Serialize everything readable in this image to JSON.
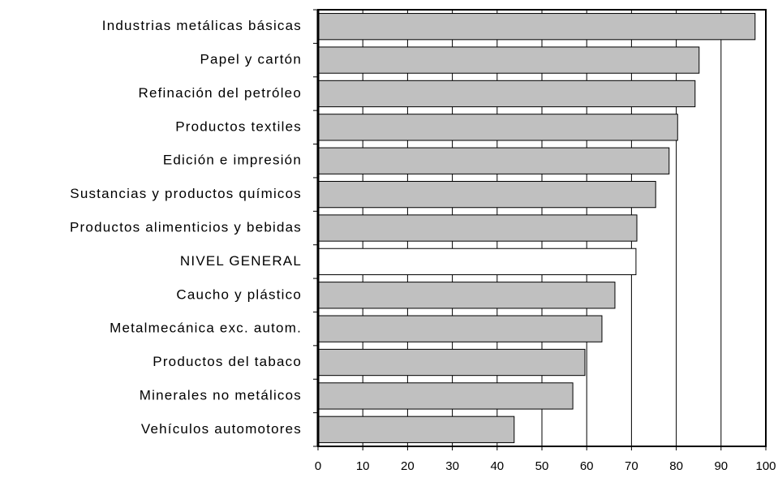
{
  "chart_data": {
    "type": "barh",
    "categories": [
      "Industrias metálicas básicas",
      "Papel y cartón",
      "Refinación del petróleo",
      "Productos textiles",
      "Edición e impresión",
      "Sustancias y productos químicos",
      "Productos alimenticios y bebidas",
      "NIVEL GENERAL",
      "Caucho y plástico",
      "Metalmecánica exc. autom.",
      "Productos del tabaco",
      "Minerales no metálicos",
      "Vehículos automotores"
    ],
    "values": [
      97.6,
      85.1,
      84.2,
      80.3,
      78.4,
      75.4,
      71.2,
      71.0,
      66.3,
      63.4,
      59.6,
      56.9,
      43.8
    ],
    "colors": [
      "#c0c0c0",
      "#c0c0c0",
      "#c0c0c0",
      "#c0c0c0",
      "#c0c0c0",
      "#c0c0c0",
      "#c0c0c0",
      "#ffffff",
      "#c0c0c0",
      "#c0c0c0",
      "#c0c0c0",
      "#c0c0c0",
      "#c0c0c0"
    ],
    "xlim": [
      0,
      100
    ],
    "xticks": [
      0,
      10,
      20,
      30,
      40,
      50,
      60,
      70,
      80,
      90,
      100
    ],
    "grid": true
  }
}
